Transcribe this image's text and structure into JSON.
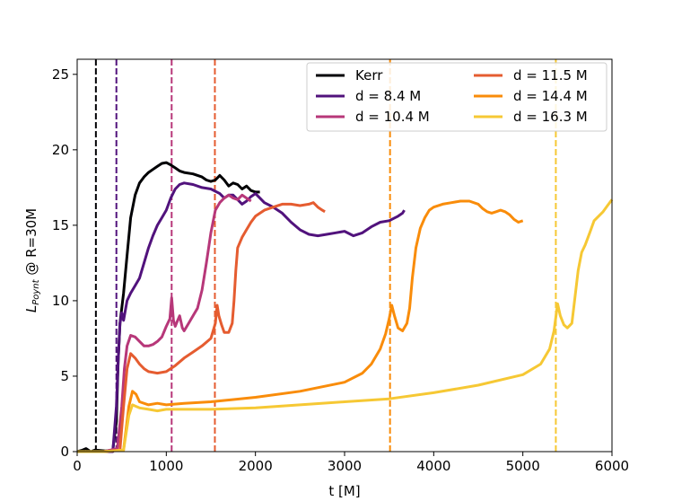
{
  "chart_data": {
    "type": "line",
    "xlabel": "t [M]",
    "ylabel_main": "L",
    "ylabel_sub": "Poynt",
    "ylabel_rest": " @ R=30M",
    "xlim": [
      0,
      6000
    ],
    "ylim": [
      0,
      26
    ],
    "xticks": [
      0,
      1000,
      2000,
      3000,
      4000,
      5000,
      6000
    ],
    "yticks": [
      0,
      5,
      10,
      15,
      20,
      25
    ],
    "grid": false,
    "legend_position": "top-right",
    "series": [
      {
        "name": "Kerr",
        "color": "#000004",
        "vline": 210,
        "points": [
          [
            0,
            0
          ],
          [
            60,
            0.1
          ],
          [
            100,
            0.2
          ],
          [
            150,
            0
          ],
          [
            200,
            0.1
          ],
          [
            320,
            0.05
          ],
          [
            400,
            0.1
          ],
          [
            440,
            2
          ],
          [
            460,
            6
          ],
          [
            480,
            8.5
          ],
          [
            520,
            10.5
          ],
          [
            560,
            13
          ],
          [
            600,
            15.5
          ],
          [
            650,
            17
          ],
          [
            700,
            17.8
          ],
          [
            750,
            18.2
          ],
          [
            800,
            18.5
          ],
          [
            850,
            18.7
          ],
          [
            900,
            18.9
          ],
          [
            950,
            19.1
          ],
          [
            1000,
            19.15
          ],
          [
            1050,
            19
          ],
          [
            1100,
            18.8
          ],
          [
            1150,
            18.6
          ],
          [
            1200,
            18.5
          ],
          [
            1300,
            18.4
          ],
          [
            1400,
            18.2
          ],
          [
            1450,
            18
          ],
          [
            1500,
            17.9
          ],
          [
            1550,
            18
          ],
          [
            1600,
            18.3
          ],
          [
            1650,
            18
          ],
          [
            1700,
            17.6
          ],
          [
            1750,
            17.8
          ],
          [
            1800,
            17.7
          ],
          [
            1850,
            17.4
          ],
          [
            1900,
            17.6
          ],
          [
            1950,
            17.3
          ],
          [
            2000,
            17.2
          ],
          [
            2050,
            17.2
          ]
        ]
      },
      {
        "name": "d = 8.4 M",
        "color": "#51127c",
        "vline": 440,
        "points": [
          [
            0,
            0
          ],
          [
            150,
            0
          ],
          [
            300,
            0
          ],
          [
            400,
            0
          ],
          [
            440,
            3
          ],
          [
            460,
            6
          ],
          [
            480,
            8.5
          ],
          [
            500,
            9.2
          ],
          [
            520,
            8.7
          ],
          [
            560,
            10
          ],
          [
            600,
            10.5
          ],
          [
            650,
            11
          ],
          [
            700,
            11.5
          ],
          [
            750,
            12.5
          ],
          [
            800,
            13.5
          ],
          [
            850,
            14.3
          ],
          [
            900,
            15
          ],
          [
            950,
            15.5
          ],
          [
            1000,
            16
          ],
          [
            1050,
            16.8
          ],
          [
            1100,
            17.4
          ],
          [
            1150,
            17.7
          ],
          [
            1200,
            17.8
          ],
          [
            1300,
            17.7
          ],
          [
            1400,
            17.5
          ],
          [
            1500,
            17.4
          ],
          [
            1600,
            17.1
          ],
          [
            1650,
            16.8
          ],
          [
            1700,
            17
          ],
          [
            1750,
            17
          ],
          [
            1800,
            16.7
          ],
          [
            1850,
            16.4
          ],
          [
            1900,
            16.6
          ],
          [
            1950,
            16.9
          ],
          [
            2000,
            17.1
          ],
          [
            2050,
            16.8
          ],
          [
            2100,
            16.5
          ],
          [
            2200,
            16.2
          ],
          [
            2300,
            15.8
          ],
          [
            2400,
            15.2
          ],
          [
            2500,
            14.7
          ],
          [
            2600,
            14.4
          ],
          [
            2700,
            14.3
          ],
          [
            2800,
            14.4
          ],
          [
            2900,
            14.5
          ],
          [
            3000,
            14.6
          ],
          [
            3100,
            14.3
          ],
          [
            3200,
            14.5
          ],
          [
            3300,
            14.9
          ],
          [
            3400,
            15.2
          ],
          [
            3500,
            15.3
          ],
          [
            3600,
            15.6
          ],
          [
            3650,
            15.8
          ],
          [
            3670,
            16
          ]
        ]
      },
      {
        "name": "d = 10.4 M",
        "color": "#b73779",
        "vline": 1060,
        "points": [
          [
            0,
            0
          ],
          [
            300,
            0
          ],
          [
            450,
            0.2
          ],
          [
            500,
            3
          ],
          [
            530,
            5.5
          ],
          [
            560,
            7
          ],
          [
            600,
            7.7
          ],
          [
            650,
            7.6
          ],
          [
            700,
            7.3
          ],
          [
            750,
            7
          ],
          [
            800,
            7
          ],
          [
            850,
            7.1
          ],
          [
            900,
            7.3
          ],
          [
            950,
            7.6
          ],
          [
            1000,
            8.3
          ],
          [
            1040,
            8.8
          ],
          [
            1060,
            10.2
          ],
          [
            1080,
            8.7
          ],
          [
            1100,
            8.3
          ],
          [
            1120,
            8.6
          ],
          [
            1150,
            9
          ],
          [
            1180,
            8.2
          ],
          [
            1200,
            8
          ],
          [
            1250,
            8.5
          ],
          [
            1300,
            9
          ],
          [
            1350,
            9.5
          ],
          [
            1400,
            10.7
          ],
          [
            1450,
            12.5
          ],
          [
            1500,
            14.5
          ],
          [
            1550,
            16
          ],
          [
            1600,
            16.5
          ],
          [
            1650,
            16.8
          ],
          [
            1700,
            17
          ],
          [
            1750,
            16.8
          ],
          [
            1800,
            16.7
          ],
          [
            1850,
            17
          ],
          [
            1900,
            16.8
          ],
          [
            1950,
            16.6
          ]
        ]
      },
      {
        "name": "d = 11.5 M",
        "color": "#e55c30",
        "vline": 1545,
        "points": [
          [
            0,
            0
          ],
          [
            300,
            0
          ],
          [
            480,
            0.1
          ],
          [
            520,
            3
          ],
          [
            560,
            5.5
          ],
          [
            600,
            6.5
          ],
          [
            650,
            6.2
          ],
          [
            700,
            5.8
          ],
          [
            750,
            5.5
          ],
          [
            800,
            5.3
          ],
          [
            900,
            5.2
          ],
          [
            1000,
            5.3
          ],
          [
            1100,
            5.7
          ],
          [
            1200,
            6.2
          ],
          [
            1300,
            6.6
          ],
          [
            1400,
            7
          ],
          [
            1500,
            7.5
          ],
          [
            1550,
            8.5
          ],
          [
            1570,
            9.7
          ],
          [
            1590,
            9
          ],
          [
            1620,
            8.4
          ],
          [
            1650,
            7.9
          ],
          [
            1700,
            7.9
          ],
          [
            1740,
            8.5
          ],
          [
            1760,
            10
          ],
          [
            1780,
            12
          ],
          [
            1800,
            13.5
          ],
          [
            1850,
            14.2
          ],
          [
            1900,
            14.7
          ],
          [
            1950,
            15.2
          ],
          [
            2000,
            15.6
          ],
          [
            2100,
            16
          ],
          [
            2200,
            16.2
          ],
          [
            2300,
            16.4
          ],
          [
            2400,
            16.4
          ],
          [
            2500,
            16.3
          ],
          [
            2600,
            16.4
          ],
          [
            2650,
            16.5
          ],
          [
            2700,
            16.2
          ],
          [
            2750,
            16
          ],
          [
            2780,
            15.9
          ]
        ]
      },
      {
        "name": "d = 14.4 M",
        "color": "#f98c0a",
        "vline": 3510,
        "points": [
          [
            0,
            0
          ],
          [
            300,
            0
          ],
          [
            520,
            0.1
          ],
          [
            580,
            3
          ],
          [
            620,
            4
          ],
          [
            660,
            3.8
          ],
          [
            700,
            3.3
          ],
          [
            800,
            3.1
          ],
          [
            900,
            3.2
          ],
          [
            1000,
            3.1
          ],
          [
            1200,
            3.2
          ],
          [
            1500,
            3.3
          ],
          [
            2000,
            3.6
          ],
          [
            2500,
            4
          ],
          [
            3000,
            4.6
          ],
          [
            3200,
            5.2
          ],
          [
            3300,
            5.8
          ],
          [
            3400,
            6.8
          ],
          [
            3460,
            7.8
          ],
          [
            3500,
            8.8
          ],
          [
            3530,
            9.7
          ],
          [
            3560,
            9
          ],
          [
            3600,
            8.2
          ],
          [
            3650,
            8
          ],
          [
            3700,
            8.5
          ],
          [
            3730,
            9.5
          ],
          [
            3760,
            11.5
          ],
          [
            3800,
            13.5
          ],
          [
            3850,
            14.8
          ],
          [
            3900,
            15.5
          ],
          [
            3950,
            16
          ],
          [
            4000,
            16.2
          ],
          [
            4100,
            16.4
          ],
          [
            4200,
            16.5
          ],
          [
            4300,
            16.6
          ],
          [
            4400,
            16.6
          ],
          [
            4500,
            16.4
          ],
          [
            4550,
            16.1
          ],
          [
            4600,
            15.9
          ],
          [
            4650,
            15.8
          ],
          [
            4700,
            15.9
          ],
          [
            4750,
            16
          ],
          [
            4800,
            15.9
          ],
          [
            4850,
            15.7
          ],
          [
            4900,
            15.4
          ],
          [
            4950,
            15.2
          ],
          [
            5000,
            15.3
          ]
        ]
      },
      {
        "name": "d = 16.3 M",
        "color": "#f6c834",
        "vline": 5370,
        "points": [
          [
            0,
            0
          ],
          [
            300,
            0
          ],
          [
            520,
            0.1
          ],
          [
            580,
            2.4
          ],
          [
            620,
            3.1
          ],
          [
            660,
            3
          ],
          [
            700,
            2.9
          ],
          [
            800,
            2.8
          ],
          [
            900,
            2.7
          ],
          [
            1000,
            2.8
          ],
          [
            1200,
            2.8
          ],
          [
            1500,
            2.8
          ],
          [
            2000,
            2.9
          ],
          [
            2500,
            3.1
          ],
          [
            3000,
            3.3
          ],
          [
            3500,
            3.5
          ],
          [
            4000,
            3.9
          ],
          [
            4500,
            4.4
          ],
          [
            5000,
            5.1
          ],
          [
            5200,
            5.8
          ],
          [
            5300,
            6.8
          ],
          [
            5350,
            8
          ],
          [
            5390,
            9.8
          ],
          [
            5420,
            9
          ],
          [
            5460,
            8.4
          ],
          [
            5500,
            8.2
          ],
          [
            5550,
            8.5
          ],
          [
            5580,
            10
          ],
          [
            5620,
            12
          ],
          [
            5660,
            13.2
          ],
          [
            5700,
            13.7
          ],
          [
            5750,
            14.5
          ],
          [
            5800,
            15.3
          ],
          [
            5850,
            15.6
          ],
          [
            5900,
            15.9
          ],
          [
            5950,
            16.3
          ],
          [
            6000,
            16.7
          ]
        ]
      }
    ]
  }
}
